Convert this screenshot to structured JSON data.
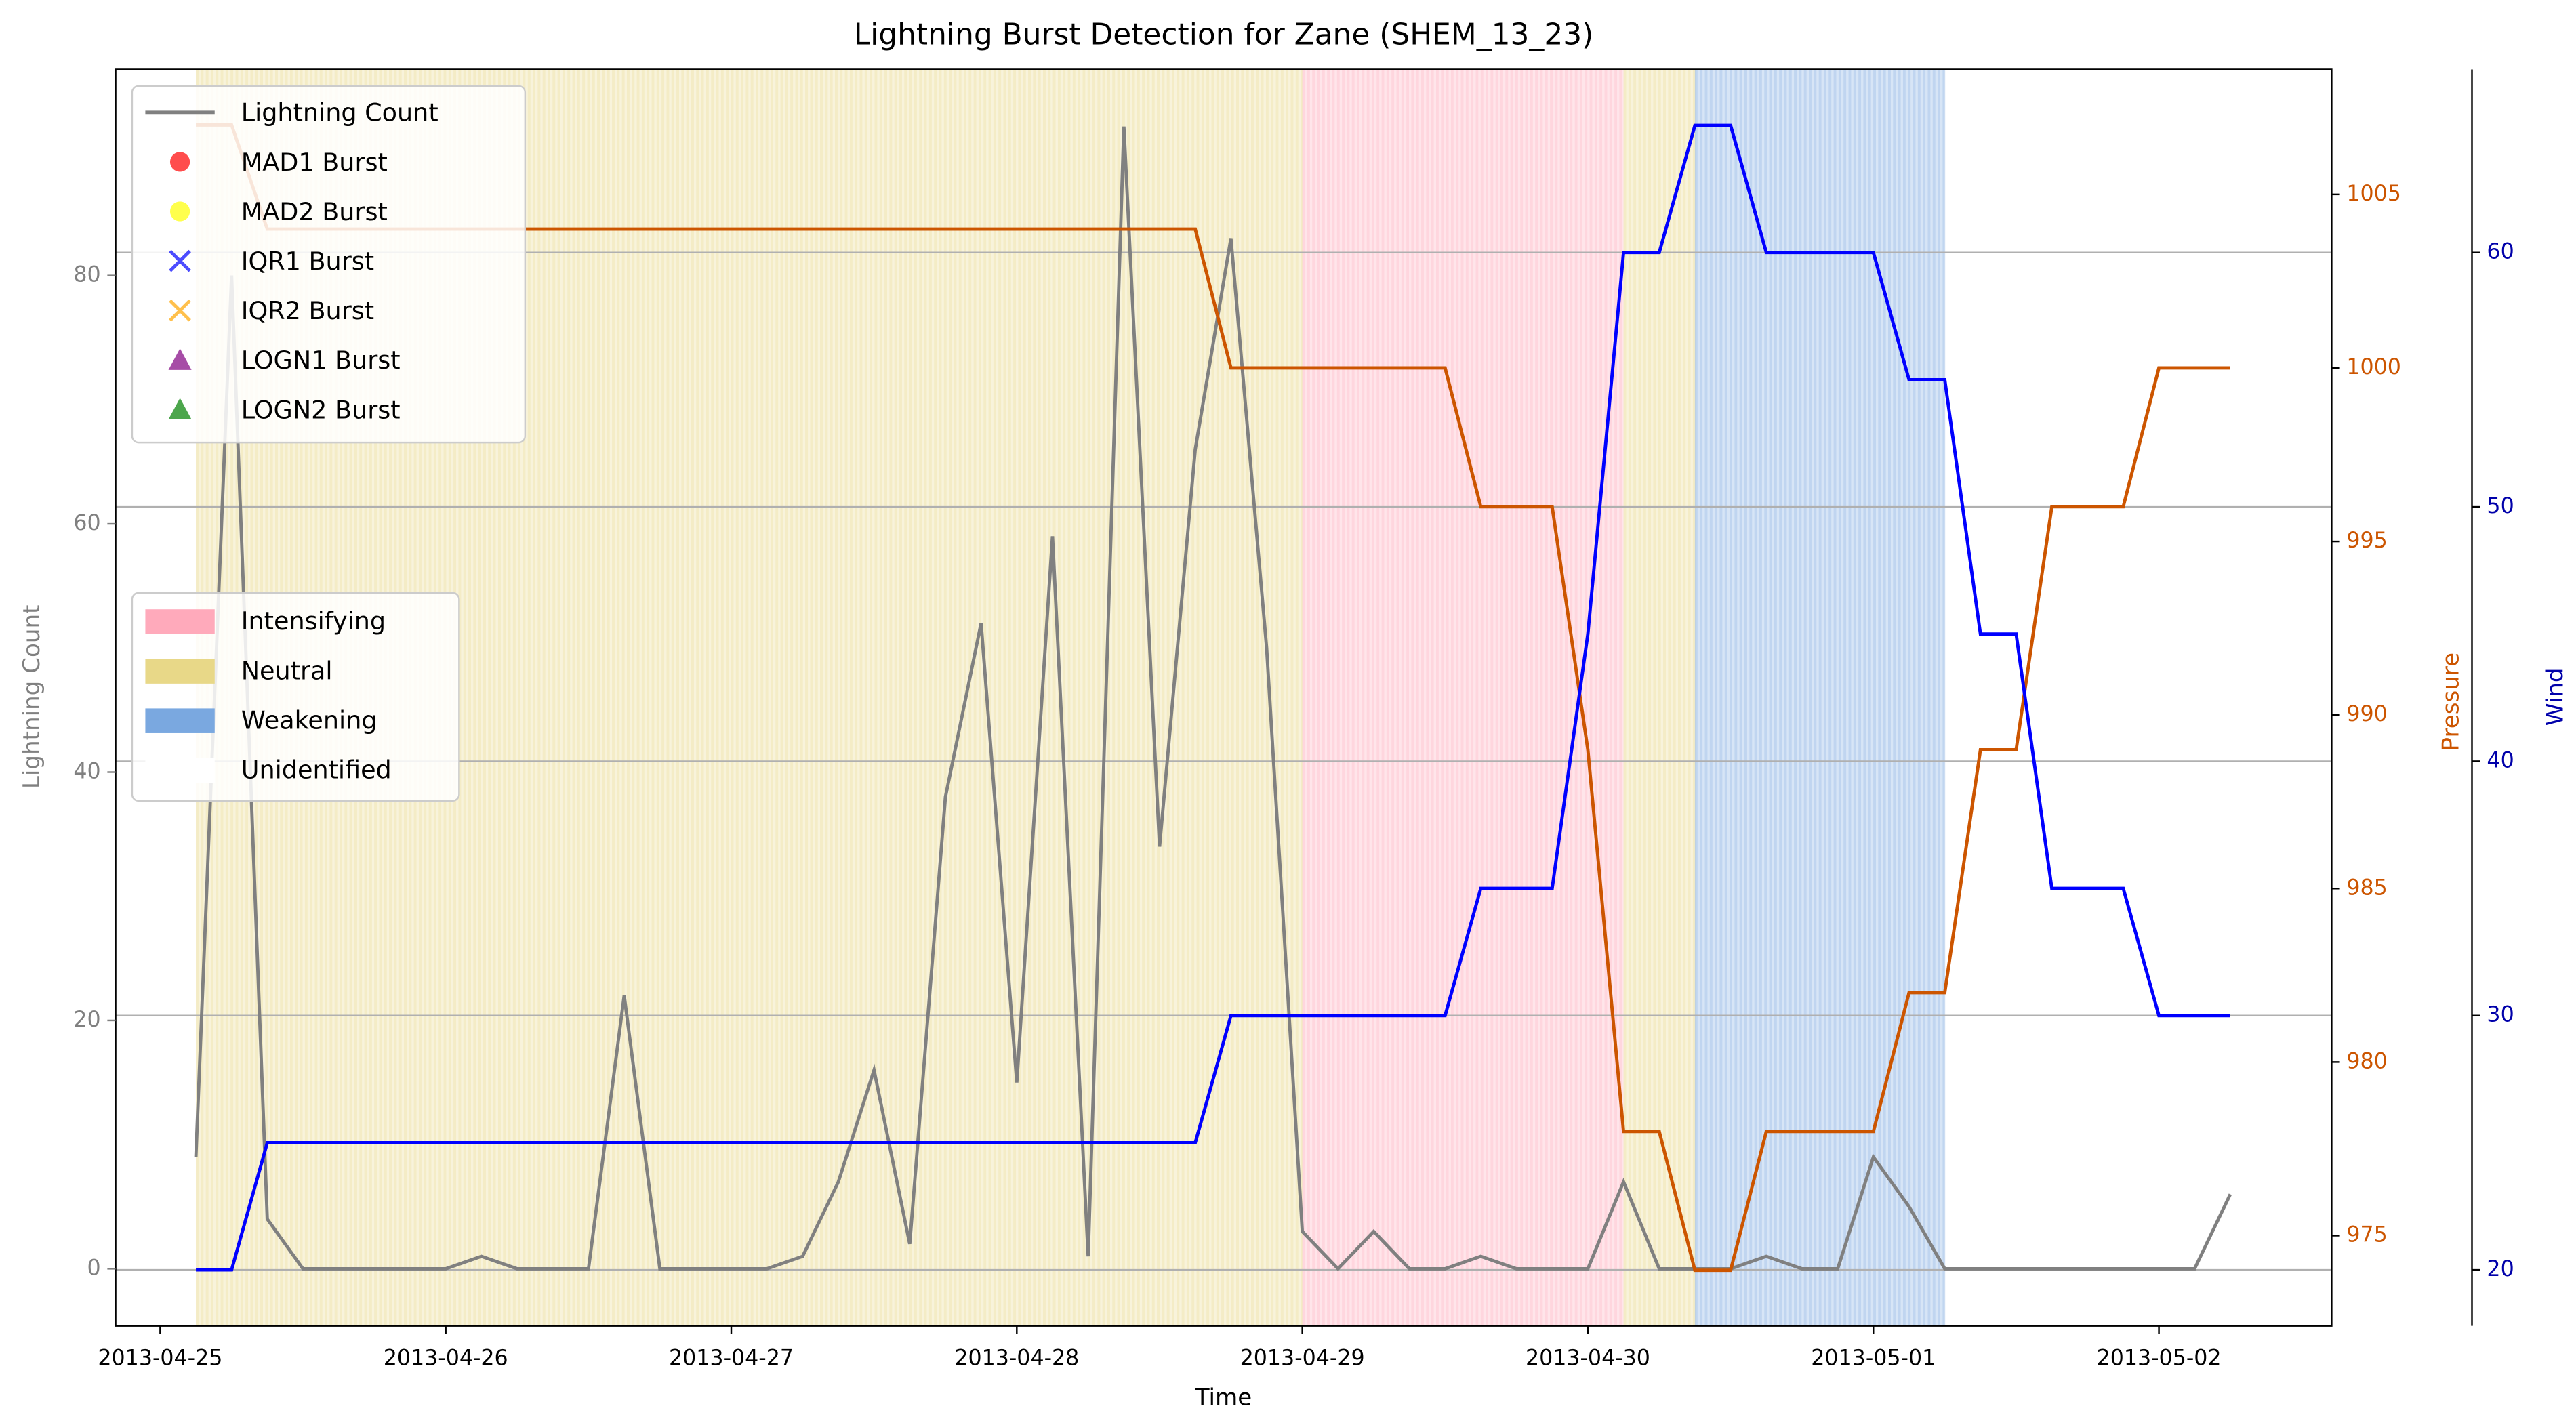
{
  "chart_data": {
    "type": "line",
    "title": "Lightning Burst Detection for Zane (SHEM_13_23)",
    "xlabel": "Time",
    "ylabel": "Lightning Count",
    "y2label": "Pressure",
    "y3label": "Wind",
    "x": [
      "2013-04-25 03:00",
      "2013-04-25 06:00",
      "2013-04-25 09:00",
      "2013-04-25 12:00",
      "2013-04-25 15:00",
      "2013-04-25 18:00",
      "2013-04-25 21:00",
      "2013-04-26 00:00",
      "2013-04-26 03:00",
      "2013-04-26 06:00",
      "2013-04-26 09:00",
      "2013-04-26 12:00",
      "2013-04-26 15:00",
      "2013-04-26 18:00",
      "2013-04-26 21:00",
      "2013-04-27 00:00",
      "2013-04-27 03:00",
      "2013-04-27 06:00",
      "2013-04-27 09:00",
      "2013-04-27 12:00",
      "2013-04-27 15:00",
      "2013-04-27 18:00",
      "2013-04-27 21:00",
      "2013-04-28 00:00",
      "2013-04-28 03:00",
      "2013-04-28 06:00",
      "2013-04-28 09:00",
      "2013-04-28 12:00",
      "2013-04-28 15:00",
      "2013-04-28 18:00",
      "2013-04-28 21:00",
      "2013-04-29 00:00",
      "2013-04-29 03:00",
      "2013-04-29 06:00",
      "2013-04-29 09:00",
      "2013-04-29 12:00",
      "2013-04-29 15:00",
      "2013-04-29 18:00",
      "2013-04-29 21:00",
      "2013-04-30 00:00",
      "2013-04-30 03:00",
      "2013-04-30 06:00",
      "2013-04-30 09:00",
      "2013-04-30 12:00",
      "2013-04-30 15:00",
      "2013-04-30 18:00",
      "2013-04-30 21:00",
      "2013-05-01 00:00",
      "2013-05-01 03:00",
      "2013-05-01 06:00",
      "2013-05-01 09:00",
      "2013-05-01 12:00",
      "2013-05-01 15:00",
      "2013-05-01 18:00",
      "2013-05-01 21:00",
      "2013-05-02 00:00",
      "2013-05-02 03:00",
      "2013-05-02 06:00"
    ],
    "series": [
      {
        "name": "Lightning Count",
        "color": "#808080",
        "values": [
          9,
          80,
          4,
          0,
          0,
          0,
          0,
          0,
          1,
          0,
          0,
          0,
          22,
          0,
          0,
          0,
          0,
          1,
          7,
          16,
          2,
          38,
          52,
          15,
          59,
          1,
          92,
          34,
          66,
          83,
          50,
          3,
          0,
          3,
          0,
          0,
          1,
          0,
          0,
          0,
          7,
          0,
          0,
          0,
          1,
          0,
          0,
          9,
          5,
          0,
          0,
          0,
          0,
          0,
          0,
          0,
          0,
          6
        ]
      },
      {
        "color": "#cc5500",
        "axis": "y2",
        "values": [
          1007,
          1007,
          1004,
          1004,
          1004,
          1004,
          1004,
          1004,
          1004,
          1004,
          1004,
          1004,
          1004,
          1004,
          1004,
          1004,
          1004,
          1004,
          1004,
          1004,
          1004,
          1004,
          1004,
          1004,
          1004,
          1004,
          1004,
          1004,
          1004,
          1000,
          1000,
          1000,
          1000,
          1000,
          1000,
          1000,
          996,
          996,
          996,
          989,
          978,
          978,
          974,
          974,
          978,
          978,
          978,
          978,
          982,
          982,
          989,
          989,
          996,
          996,
          996,
          1000,
          1000,
          1000
        ]
      },
      {
        "color": "#0000ff",
        "axis": "y3",
        "values": [
          20,
          20,
          25,
          25,
          25,
          25,
          25,
          25,
          25,
          25,
          25,
          25,
          25,
          25,
          25,
          25,
          25,
          25,
          25,
          25,
          25,
          25,
          25,
          25,
          25,
          25,
          25,
          25,
          25,
          30,
          30,
          30,
          30,
          30,
          30,
          30,
          35,
          35,
          35,
          45,
          60,
          60,
          65,
          65,
          60,
          60,
          60,
          60,
          55,
          55,
          45,
          45,
          35,
          35,
          35,
          30,
          30,
          30
        ]
      }
    ],
    "xlim": [
      "2013-04-24 20:15",
      "2013-05-02 14:31"
    ],
    "xticks": [
      "2013-04-25",
      "2013-04-26",
      "2013-04-27",
      "2013-04-28",
      "2013-04-29",
      "2013-04-30",
      "2013-05-01",
      "2013-05-02"
    ],
    "ylim": [
      -4.6,
      96.6
    ],
    "yticks": [
      0,
      20,
      40,
      60,
      80
    ],
    "y2lim": [
      972.4,
      1008.6
    ],
    "y2ticks": [
      975,
      980,
      985,
      990,
      995,
      1000,
      1005
    ],
    "y3lim": [
      17.8,
      67.2
    ],
    "y3ticks": [
      20,
      30,
      40,
      50,
      60
    ],
    "grid": "y3",
    "burst_markers": [
      {
        "name": "MAD1 Burst",
        "color": "#ff0000",
        "marker": "circle"
      },
      {
        "name": "MAD2 Burst",
        "color": "#ffff00",
        "marker": "circle"
      },
      {
        "name": "IQR1 Burst",
        "color": "#0000ff",
        "marker": "x"
      },
      {
        "name": "IQR2 Burst",
        "color": "#ffa500",
        "marker": "x"
      },
      {
        "name": "LOGN1 Burst",
        "color": "#800080",
        "marker": "triangle"
      },
      {
        "name": "LOGN2 Burst",
        "color": "#008000",
        "marker": "triangle"
      }
    ],
    "phase_legend": [
      {
        "label": "Intensifying",
        "color": "#ffaabb"
      },
      {
        "label": "Neutral",
        "color": "#e8d888"
      },
      {
        "label": "Weakening",
        "color": "#7aa8e0"
      },
      {
        "label": "Unidentified",
        "color": "#ffffff"
      }
    ],
    "phases": [
      {
        "label": "Neutral",
        "start": "2013-04-25 03:00",
        "end": "2013-04-29 00:00"
      },
      {
        "label": "Intensifying",
        "start": "2013-04-29 00:00",
        "end": "2013-04-30 03:00"
      },
      {
        "label": "Neutral",
        "start": "2013-04-30 03:00",
        "end": "2013-04-30 09:00"
      },
      {
        "label": "Weakening",
        "start": "2013-04-30 09:00",
        "end": "2013-05-01 06:00"
      }
    ]
  }
}
